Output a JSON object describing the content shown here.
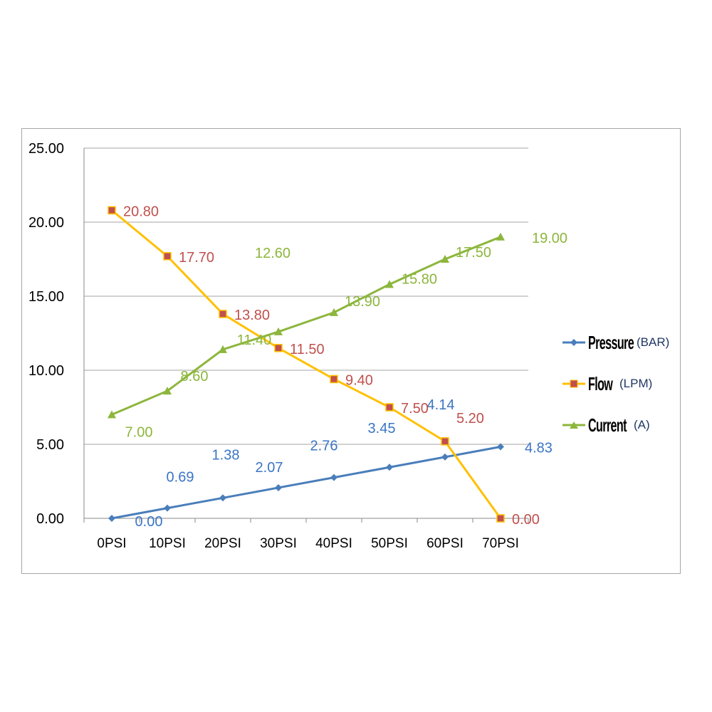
{
  "chart_data": {
    "type": "line",
    "categories": [
      "0PSI",
      "10PSI",
      "20PSI",
      "30PSI",
      "40PSI",
      "50PSI",
      "60PSI",
      "70PSI"
    ],
    "ylim": [
      0,
      25
    ],
    "yticks": [
      "0.00",
      "5.00",
      "10.00",
      "15.00",
      "20.00",
      "25.00"
    ],
    "grid": true,
    "legend_position": "right",
    "series": [
      {
        "name": "Pressure",
        "unit": "(BAR)",
        "color": "#4a7ebb",
        "label_color": "#3a75c4",
        "marker": "diamond",
        "values": [
          0.0,
          0.69,
          1.38,
          2.07,
          2.76,
          3.45,
          4.14,
          4.83
        ],
        "labels": [
          "0.00",
          "0.69",
          "1.38",
          "2.07",
          "2.76",
          "3.45",
          "4.14",
          "4.83"
        ]
      },
      {
        "name": "Flow",
        "unit": "(LPM)",
        "color": "#ffc000",
        "label_color": "#c0504d",
        "marker": "square",
        "marker_color": "#c0504d",
        "values": [
          20.8,
          17.7,
          13.8,
          11.5,
          9.4,
          7.5,
          5.2,
          0.0
        ],
        "labels": [
          "20.80",
          "17.70",
          "13.80",
          "11.50",
          "9.40",
          "7.50",
          "5.20",
          "0.00"
        ]
      },
      {
        "name": "Current",
        "unit": "(A)",
        "color": "#8cb63c",
        "label_color": "#8cb63c",
        "marker": "triangle",
        "values": [
          7.0,
          8.6,
          11.4,
          12.6,
          13.9,
          15.8,
          17.5,
          19.0
        ],
        "labels": [
          "7.00",
          "8.60",
          "11.40",
          "12.60",
          "13.90",
          "15.80",
          "17.50",
          "19.00"
        ]
      }
    ]
  }
}
